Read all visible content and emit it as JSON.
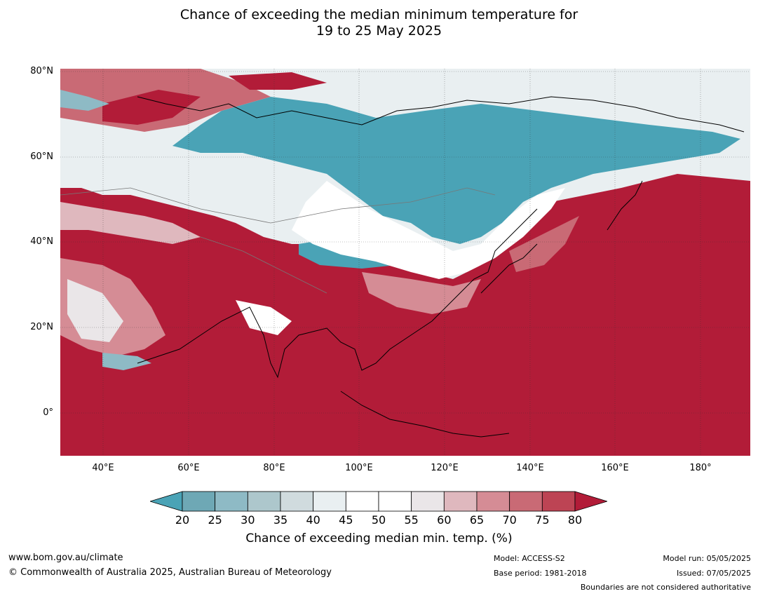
{
  "title_line1": "Chance of exceeding the median minimum temperature for",
  "title_line2": "19 to 25 May 2025",
  "lat_labels": [
    "80°N",
    "60°N",
    "40°N",
    "20°N",
    "0°"
  ],
  "lon_labels": [
    "40°E",
    "60°E",
    "80°E",
    "100°E",
    "120°E",
    "140°E",
    "160°E",
    "180°"
  ],
  "colorbar": {
    "ticks": [
      "20",
      "25",
      "30",
      "35",
      "40",
      "45",
      "50",
      "55",
      "60",
      "65",
      "70",
      "75",
      "80"
    ],
    "colors": [
      "#4aa3b6",
      "#6ea8b5",
      "#8ebac5",
      "#adc7cc",
      "#d0dbde",
      "#e9eff1",
      "#ffffff",
      "#ffffff",
      "#eae6e8",
      "#dfb8be",
      "#d58c95",
      "#c96a75",
      "#bd4454",
      "#b21c38"
    ],
    "title": "Chance of exceeding median min. temp. (%)"
  },
  "footer": {
    "website": "www.bom.gov.au/climate",
    "copyright": "© Commonwealth of Australia 2025, Australian Bureau of Meteorology",
    "model": "Model: ACCESS-S2",
    "base_period": "Base period: 1981-2018",
    "model_run": "Model run: 05/05/2025",
    "issued": "Issued: 07/05/2025",
    "disclaimer": "Boundaries are not considered authoritative"
  }
}
